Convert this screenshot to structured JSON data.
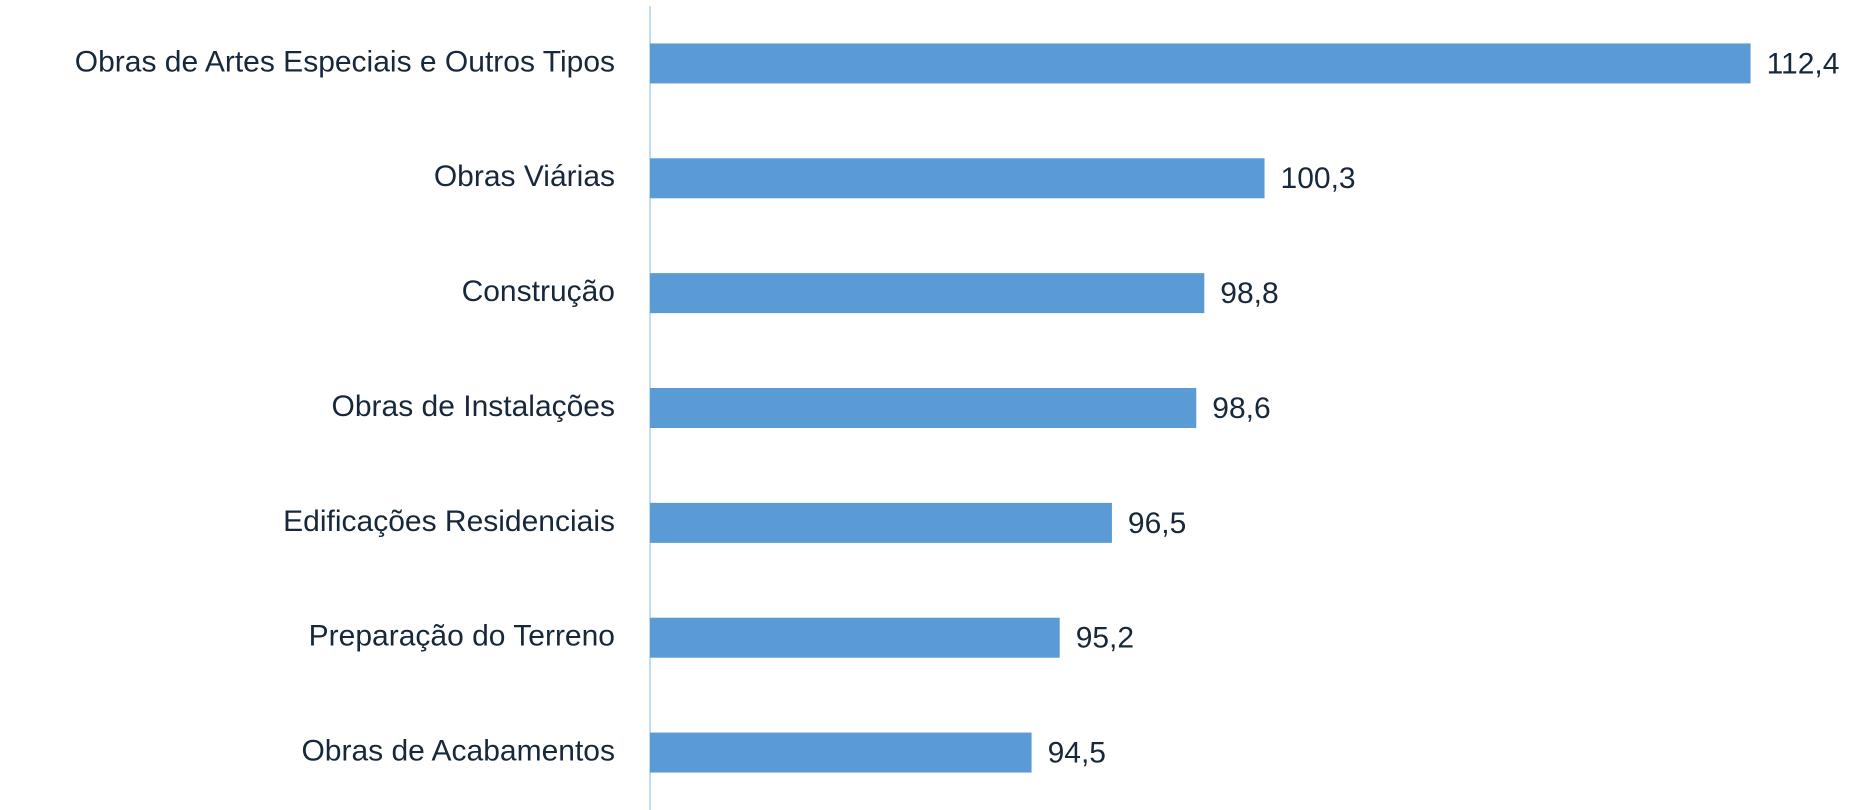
{
  "chart_data": {
    "type": "hbar",
    "categories": [
      "Obras de Artes Especiais e Outros Tipos",
      "Obras Viárias",
      "Construção",
      "Obras de Instalações",
      "Edificações Residenciais",
      "Preparação do Terreno",
      "Obras de Acabamentos"
    ],
    "values": [
      112.4,
      100.3,
      98.8,
      98.6,
      96.5,
      95.2,
      94.5
    ],
    "value_labels": [
      "112,4",
      "100,3",
      "98,8",
      "98,6",
      "96,5",
      "95,2",
      "94,5"
    ],
    "color": "#5b9bd5",
    "xlim": [
      85,
      115
    ]
  }
}
